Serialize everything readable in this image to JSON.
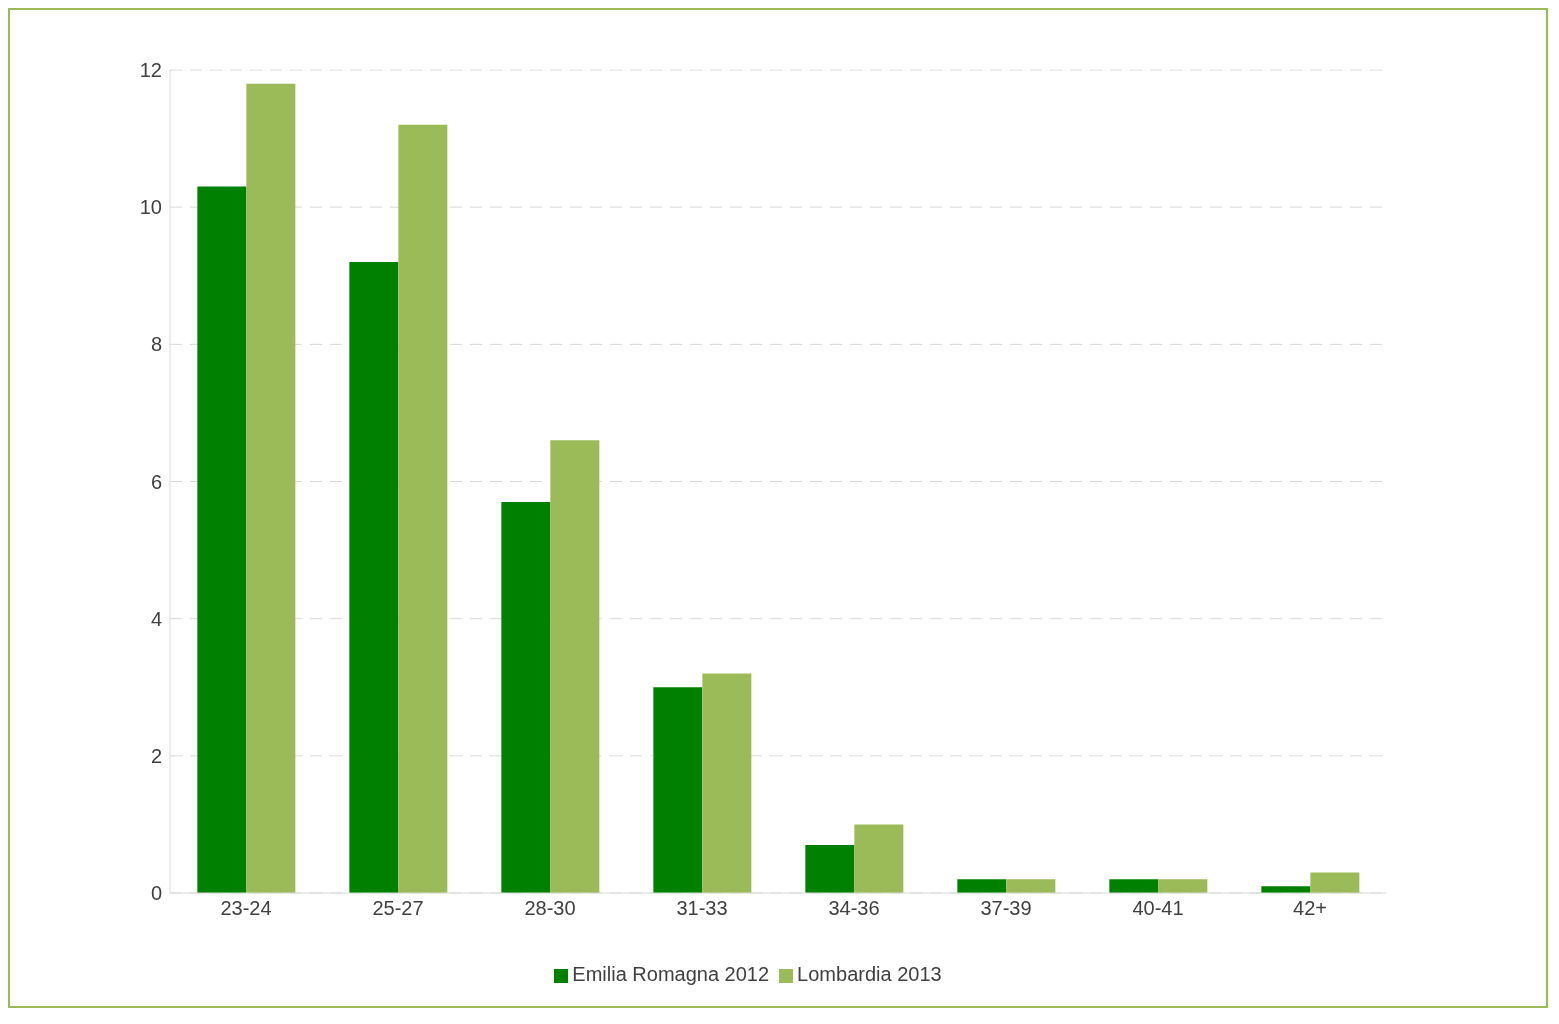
{
  "chart_data": {
    "type": "bar",
    "categories": [
      "23-24",
      "25-27",
      "28-30",
      "31-33",
      "34-36",
      "37-39",
      "40-41",
      "42+"
    ],
    "series": [
      {
        "name": "Emilia Romagna 2012",
        "color": "#008000",
        "values": [
          10.3,
          9.2,
          5.7,
          3.0,
          0.7,
          0.2,
          0.2,
          0.1
        ]
      },
      {
        "name": "Lombardia 2013",
        "color": "#9bbb59",
        "values": [
          11.8,
          11.2,
          6.6,
          3.2,
          1.0,
          0.2,
          0.2,
          0.3
        ]
      }
    ],
    "ylim": [
      0,
      12
    ],
    "yticks": [
      0,
      2,
      4,
      6,
      8,
      10,
      12
    ],
    "grid": "y",
    "legend": "bottom"
  }
}
